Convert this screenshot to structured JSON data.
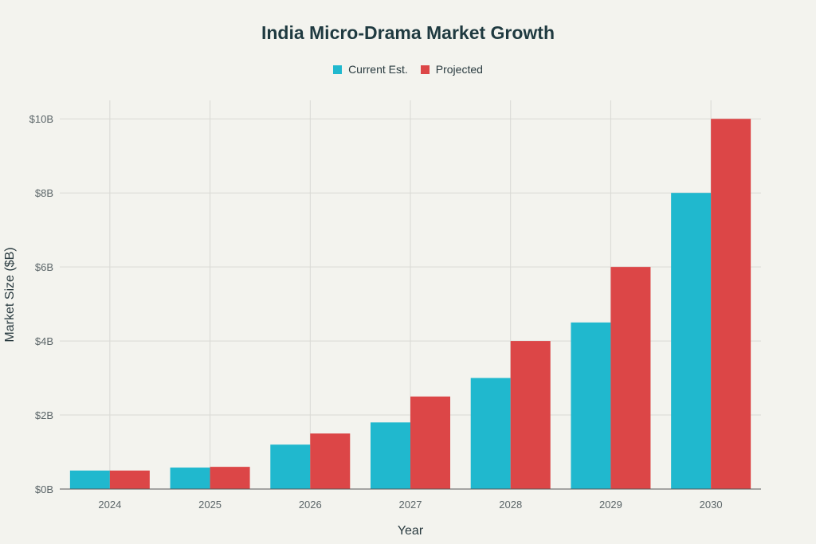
{
  "chart_data": {
    "type": "bar",
    "title": "India Micro-Drama Market Growth",
    "xlabel": "Year",
    "ylabel": "Market Size ($B)",
    "categories": [
      "2024",
      "2025",
      "2026",
      "2027",
      "2028",
      "2029",
      "2030"
    ],
    "series": [
      {
        "name": "Current Est.",
        "color": "#20b8ce",
        "values": [
          0.5,
          0.58,
          1.2,
          1.8,
          3.0,
          4.5,
          8.0
        ]
      },
      {
        "name": "Projected",
        "color": "#dc4647",
        "values": [
          0.5,
          0.6,
          1.5,
          2.5,
          4.0,
          6.0,
          10.0
        ]
      }
    ],
    "ylim": [
      0,
      10.5
    ],
    "yticks": [
      0,
      2,
      4,
      6,
      8,
      10
    ],
    "ytick_labels": [
      "$0B",
      "$2B",
      "$4B",
      "$6B",
      "$8B",
      "$10B"
    ],
    "grid": true,
    "legend_position": "top-center"
  }
}
